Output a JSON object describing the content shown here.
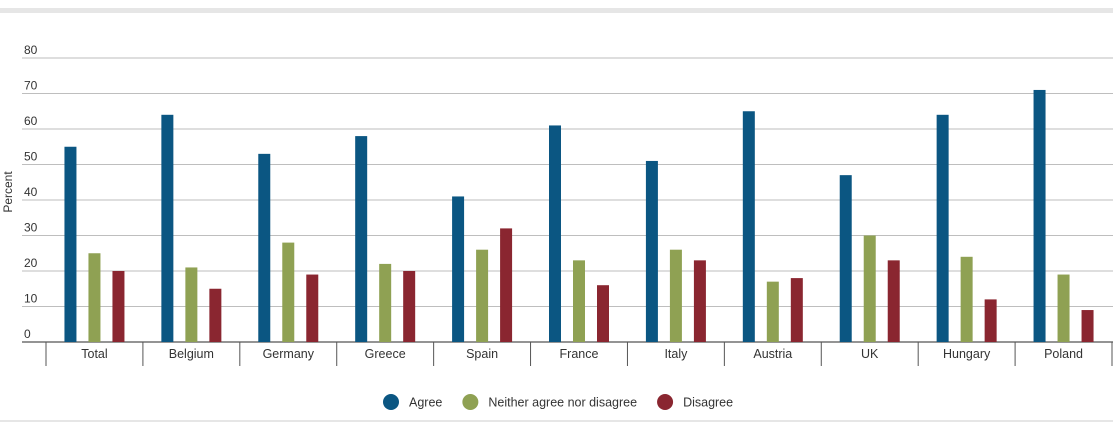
{
  "chart_data": {
    "type": "bar",
    "ylabel": "Percent",
    "xlabel": "",
    "ylim": [
      0,
      80
    ],
    "yticks": [
      0,
      10,
      20,
      30,
      40,
      50,
      60,
      70,
      80
    ],
    "grid": true,
    "legend_position": "bottom-center",
    "categories": [
      "Total",
      "Belgium",
      "Germany",
      "Greece",
      "Spain",
      "France",
      "Italy",
      "Austria",
      "UK",
      "Hungary",
      "Poland"
    ],
    "series": [
      {
        "name": "Agree",
        "color": "#0b5682",
        "values": [
          55,
          64,
          53,
          58,
          41,
          61,
          51,
          65,
          47,
          64,
          71
        ]
      },
      {
        "name": "Neither agree nor disagree",
        "color": "#8fa153",
        "values": [
          25,
          21,
          28,
          22,
          26,
          23,
          26,
          17,
          30,
          24,
          19
        ]
      },
      {
        "name": "Disagree",
        "color": "#8a2630",
        "values": [
          20,
          15,
          19,
          20,
          32,
          16,
          23,
          18,
          23,
          12,
          9
        ]
      }
    ]
  }
}
